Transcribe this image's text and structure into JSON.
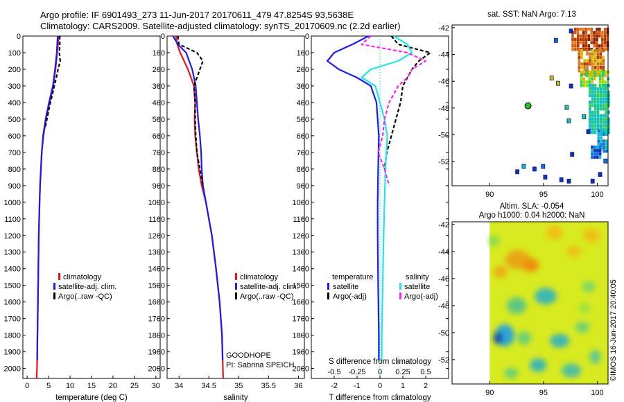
{
  "header": {
    "title_line1": "Argo profile: IF 6901493_273 11-Jun-2017 20170611_479 47.8254S 93.5638E",
    "title_line2": "Climatology: CARS2009. Satellite-adjusted climatology: synTS_20170609.nc (2.2d earlier)"
  },
  "depth_axis": {
    "ticks": [
      0,
      100,
      200,
      300,
      400,
      500,
      600,
      700,
      800,
      900,
      1000,
      1100,
      1200,
      1300,
      1400,
      1500,
      1600,
      1700,
      1800,
      1900,
      2000
    ],
    "range": [
      0,
      2060
    ]
  },
  "colors": {
    "climatology": "#e8141c",
    "satellite": "#1a1aff",
    "argo": "#000000",
    "s_satellite": "#22e6e6",
    "s_argo": "#ff22ff",
    "float_marker": "#22c022"
  },
  "chart_data": [
    {
      "id": "temperature",
      "type": "line",
      "xlabel": "temperature (deg C)",
      "xlim": [
        -1,
        31
      ],
      "xticks": [
        0,
        5,
        10,
        15,
        20,
        25,
        30
      ],
      "legend": [
        "climatology",
        "satellite-adj. clim.",
        "Argo(..raw -QC)"
      ],
      "series": [
        {
          "name": "climatology",
          "style": "solid",
          "depth": [
            0,
            50,
            100,
            200,
            300,
            400,
            500,
            600,
            700,
            800,
            900,
            1000,
            1200,
            1400,
            1600,
            1800,
            2000,
            2060
          ],
          "values": [
            7.3,
            7.2,
            7.0,
            6.6,
            6.1,
            5.2,
            4.4,
            3.8,
            3.4,
            3.2,
            3.0,
            2.9,
            2.7,
            2.6,
            2.5,
            2.4,
            2.3,
            2.2
          ]
        },
        {
          "name": "satellite-adj. clim.",
          "style": "solid",
          "depth": [
            0,
            50,
            100,
            200,
            300,
            400,
            500,
            600,
            700,
            800,
            900,
            1000,
            1200,
            1400,
            1600,
            1800,
            1950
          ],
          "values": [
            7.1,
            7.0,
            6.9,
            6.5,
            6.0,
            5.1,
            4.3,
            3.7,
            3.4,
            3.2,
            3.0,
            2.9,
            2.7,
            2.6,
            2.5,
            2.4,
            2.35
          ]
        },
        {
          "name": "Argo(..raw -QC)",
          "style": "dashed",
          "depth": [
            0,
            50,
            100,
            150,
            200,
            250,
            300,
            350,
            400,
            450,
            500,
            550
          ],
          "values": [
            7.6,
            7.6,
            7.5,
            7.7,
            7.2,
            6.8,
            6.3,
            5.9,
            5.4,
            5.0,
            4.6,
            4.2
          ]
        }
      ]
    },
    {
      "id": "salinity",
      "type": "line",
      "xlabel": "salinity",
      "xlim": [
        33.8,
        36.1
      ],
      "xticks": [
        34,
        34.5,
        35,
        35.5,
        36
      ],
      "legend": [
        "climatology",
        "satellite-adj. clim.",
        "Argo(..raw -QC)"
      ],
      "annotation": [
        "GOODHOPE",
        "PI: Sabrina SPEICH"
      ],
      "series": [
        {
          "name": "climatology",
          "style": "solid",
          "depth": [
            0,
            50,
            100,
            200,
            300,
            400,
            500,
            600,
            700,
            800,
            900,
            1000,
            1200,
            1400,
            1600,
            1800,
            2060
          ],
          "values": [
            33.95,
            33.97,
            34.02,
            34.15,
            34.25,
            34.27,
            34.26,
            34.27,
            34.3,
            34.33,
            34.38,
            34.45,
            34.55,
            34.62,
            34.68,
            34.72,
            34.74
          ]
        },
        {
          "name": "satellite-adj. clim.",
          "style": "solid",
          "depth": [
            0,
            50,
            100,
            200,
            300,
            400,
            500,
            600,
            700,
            800,
            900,
            1000,
            1200,
            1400,
            1600,
            1800,
            1950
          ],
          "values": [
            33.9,
            33.98,
            34.12,
            34.22,
            34.28,
            34.3,
            34.32,
            34.35,
            34.37,
            34.38,
            34.4,
            34.45,
            34.55,
            34.62,
            34.68,
            34.72,
            34.73
          ]
        },
        {
          "name": "Argo(..raw -QC)",
          "style": "dashed",
          "depth": [
            0,
            50,
            100,
            150,
            200,
            250,
            300,
            400,
            500,
            600,
            700,
            800,
            900
          ],
          "values": [
            33.98,
            34.0,
            34.3,
            34.4,
            34.35,
            34.3,
            34.25,
            34.27,
            34.27,
            34.28,
            34.3,
            34.35,
            34.4
          ]
        }
      ]
    },
    {
      "id": "difference",
      "type": "line",
      "xlabel": "T difference from climatology",
      "xlabel_top": "S difference from climatology",
      "xlim": [
        -3,
        3
      ],
      "xticks": [
        -2,
        -1,
        0,
        1,
        2
      ],
      "xticks_top": [
        "-0.5",
        "-0.25",
        "0",
        "0.25",
        "0.5"
      ],
      "legend_temperature_title": "temperature",
      "legend_salinity_title": "salinity",
      "legend": [
        "satellite",
        "Argo(-adj)",
        "satellite",
        "Argo(-adj)"
      ],
      "series": [
        {
          "name": "T satellite",
          "style": "solid",
          "depth": [
            0,
            50,
            100,
            150,
            200,
            250,
            300,
            400,
            500,
            600,
            800,
            1000,
            1200,
            1500,
            1800,
            1950
          ],
          "values": [
            -0.5,
            -1.2,
            -2.0,
            -2.3,
            -1.8,
            -1.0,
            -0.4,
            -0.15,
            -0.1,
            -0.05,
            -0.08,
            -0.1,
            -0.1,
            -0.08,
            -0.05,
            -0.05
          ]
        },
        {
          "name": "T Argo(-adj)",
          "style": "dashed",
          "depth": [
            0,
            50,
            100,
            150,
            200,
            250,
            300,
            350,
            400,
            450,
            500,
            550,
            600,
            650,
            700,
            800
          ],
          "values": [
            0.5,
            0.8,
            2.2,
            1.7,
            1.4,
            1.2,
            1.0,
            0.95,
            0.9,
            0.8,
            0.7,
            0.6,
            0.5,
            0.4,
            0.3,
            0.2
          ]
        },
        {
          "name": "S satellite",
          "style": "solid",
          "depth": [
            0,
            50,
            100,
            150,
            200,
            250,
            300,
            400,
            500,
            600,
            800,
            1000,
            1200,
            1500,
            1800,
            1950
          ],
          "values": [
            0.15,
            0.3,
            0.35,
            0.2,
            -0.1,
            -0.2,
            -0.05,
            0.0,
            0.05,
            0.08,
            0.06,
            0.05,
            0.04,
            0.03,
            0.02,
            0.02
          ]
        },
        {
          "name": "S Argo(-adj)",
          "style": "dashed",
          "depth": [
            0,
            50,
            100,
            150,
            200,
            250,
            300,
            400,
            500,
            600,
            700,
            800,
            900
          ],
          "values": [
            -0.1,
            -0.2,
            0.3,
            0.5,
            0.35,
            0.3,
            0.2,
            0.1,
            0.05,
            0.03,
            -0.02,
            0.05,
            0.1
          ]
        }
      ]
    },
    {
      "id": "sst-map",
      "type": "heatmap",
      "title": "sat. SST: NaN Argo: 7.13",
      "xticks": [
        90,
        95,
        100
      ],
      "yticks": [
        -42,
        -44,
        -46,
        -48,
        -50,
        -52
      ],
      "xlim": [
        86.5,
        101
      ],
      "ylim": [
        -53.8,
        -41.8
      ],
      "float_position": [
        93.56,
        -47.83
      ]
    },
    {
      "id": "sla-map",
      "type": "heatmap",
      "title": "Altim. SLA: -0.054",
      "subtitle": "Argo h1000: 0.04 h2000: NaN",
      "xticks": [
        90,
        95,
        100
      ],
      "yticks": [
        -42,
        -44,
        -46,
        -48,
        -50,
        -52
      ],
      "xlim": [
        86.5,
        101
      ],
      "ylim": [
        -53.8,
        -41.8
      ]
    }
  ],
  "footer": {
    "stamp": "©IMOS 16-Jun-2017 20:40:05"
  }
}
